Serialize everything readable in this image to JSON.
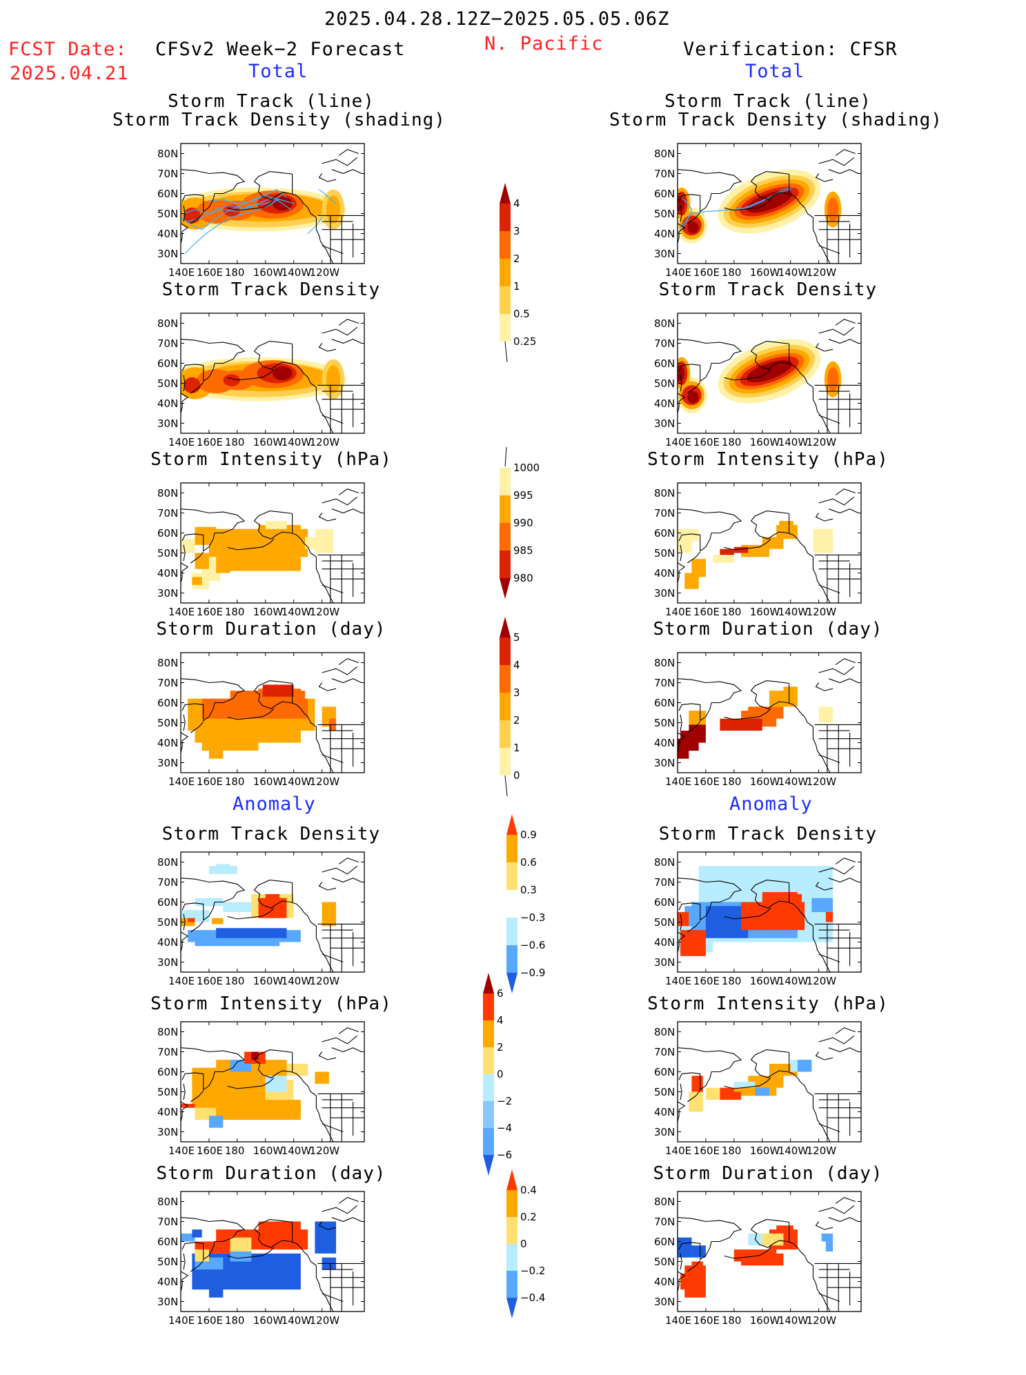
{
  "header": {
    "period": "2025.04.28.12Z−2025.05.05.06Z",
    "fcst_label": "FCST Date:",
    "fcst_date": "2025.04.21",
    "region": "N. Pacific",
    "left_title": "CFSv2 Week−2 Forecast",
    "right_title": "Verification: CFSR",
    "total_label": "Total",
    "anomaly_label": "Anomaly"
  },
  "panel_titles": {
    "track_line": "Storm Track (line)",
    "track_density_shading": "Storm Track Density (shading)",
    "track_density": "Storm Track Density",
    "intensity": "Storm Intensity (hPa)",
    "duration": "Storm Duration (day)"
  },
  "axes": {
    "lat_ticks": [
      "80N",
      "70N",
      "60N",
      "50N",
      "40N",
      "30N"
    ],
    "lon_ticks": [
      "140E",
      "160E",
      "180",
      "160W",
      "140W",
      "120W"
    ]
  },
  "colorbars": {
    "density": {
      "labels": [
        "4",
        "3",
        "2",
        "1",
        "0.5",
        "0.25"
      ],
      "colors": [
        "#a00000",
        "#dd2200",
        "#ff6a00",
        "#ffa800",
        "#ffd050",
        "#fff2a8"
      ]
    },
    "intensity": {
      "labels": [
        "1000",
        "995",
        "990",
        "985",
        "980"
      ],
      "colors": [
        "#fff2a8",
        "#ffa800",
        "#ff6a00",
        "#dd2200",
        "#a00000"
      ]
    },
    "duration": {
      "labels": [
        "5",
        "4",
        "3",
        "2",
        "1",
        "0"
      ],
      "colors": [
        "#a00000",
        "#dd2200",
        "#ff6a00",
        "#ffa800",
        "#ffd050",
        "#fff2a8"
      ]
    },
    "anom_density": {
      "labels": [
        "0.9",
        "0.6",
        "0.3",
        "−0.3",
        "−0.6",
        "−0.9"
      ],
      "colors": [
        "#ff3a00",
        "#ffa800",
        "#ffe070",
        "#ffffff",
        "#b8ecff",
        "#58a8ff",
        "#1f5ee0"
      ]
    },
    "anom_intensity": {
      "labels": [
        "6",
        "4",
        "2",
        "0",
        "−2",
        "−4",
        "−6"
      ],
      "colors": [
        "#a00000",
        "#ff3a00",
        "#ffa800",
        "#ffe070",
        "#b8ecff",
        "#88c8ff",
        "#58a8ff",
        "#1f5ee0"
      ]
    },
    "anom_duration": {
      "labels": [
        "0.4",
        "0.2",
        "0",
        "−0.2",
        "−0.4"
      ],
      "colors": [
        "#ff3a00",
        "#ffa800",
        "#ffe070",
        "#b8ecff",
        "#58a8ff",
        "#1f5ee0"
      ]
    }
  },
  "chart_data": [
    {
      "type": "heatmap",
      "title": "Storm Track (line) / Storm Track Density (shading)",
      "source": "CFSv2 Week-2 Forecast",
      "variant": "Total",
      "peak_region": "160W-150W, 55N",
      "peak_value": 4
    },
    {
      "type": "heatmap",
      "title": "Storm Track (line) / Storm Track Density (shading)",
      "source": "Verification: CFSR",
      "variant": "Total",
      "peak_region": "170W-140W, 50-60N",
      "peak_value": 4
    },
    {
      "type": "heatmap",
      "title": "Storm Track Density",
      "source": "CFSv2 Week-2 Forecast",
      "variant": "Total",
      "peak_value": 4
    },
    {
      "type": "heatmap",
      "title": "Storm Track Density",
      "source": "Verification: CFSR",
      "variant": "Total",
      "peak_value": 4
    },
    {
      "type": "heatmap",
      "title": "Storm Intensity (hPa)",
      "source": "CFSv2 Week-2 Forecast",
      "variant": "Total",
      "range": [
        990,
        1000
      ]
    },
    {
      "type": "heatmap",
      "title": "Storm Intensity (hPa)",
      "source": "Verification: CFSR",
      "variant": "Total",
      "range": [
        985,
        1000
      ]
    },
    {
      "type": "heatmap",
      "title": "Storm Duration (day)",
      "source": "CFSv2 Week-2 Forecast",
      "variant": "Total",
      "range": [
        1,
        5
      ]
    },
    {
      "type": "heatmap",
      "title": "Storm Duration (day)",
      "source": "Verification: CFSR",
      "variant": "Total",
      "range": [
        2,
        5
      ]
    },
    {
      "type": "heatmap",
      "title": "Storm Track Density",
      "source": "CFSv2 Week-2 Forecast",
      "variant": "Anomaly",
      "range": [
        -0.9,
        0.9
      ]
    },
    {
      "type": "heatmap",
      "title": "Storm Track Density",
      "source": "Verification: CFSR",
      "variant": "Anomaly",
      "range": [
        -0.9,
        0.9
      ]
    },
    {
      "type": "heatmap",
      "title": "Storm Intensity (hPa)",
      "source": "CFSv2 Week-2 Forecast",
      "variant": "Anomaly",
      "range": [
        -6,
        6
      ]
    },
    {
      "type": "heatmap",
      "title": "Storm Intensity (hPa)",
      "source": "Verification: CFSR",
      "variant": "Anomaly",
      "range": [
        -4,
        4
      ]
    },
    {
      "type": "heatmap",
      "title": "Storm Duration (day)",
      "source": "CFSv2 Week-2 Forecast",
      "variant": "Anomaly",
      "range": [
        -0.4,
        0.4
      ]
    },
    {
      "type": "heatmap",
      "title": "Storm Duration (day)",
      "source": "Verification: CFSR",
      "variant": "Anomaly",
      "range": [
        -0.2,
        0.4
      ]
    }
  ]
}
